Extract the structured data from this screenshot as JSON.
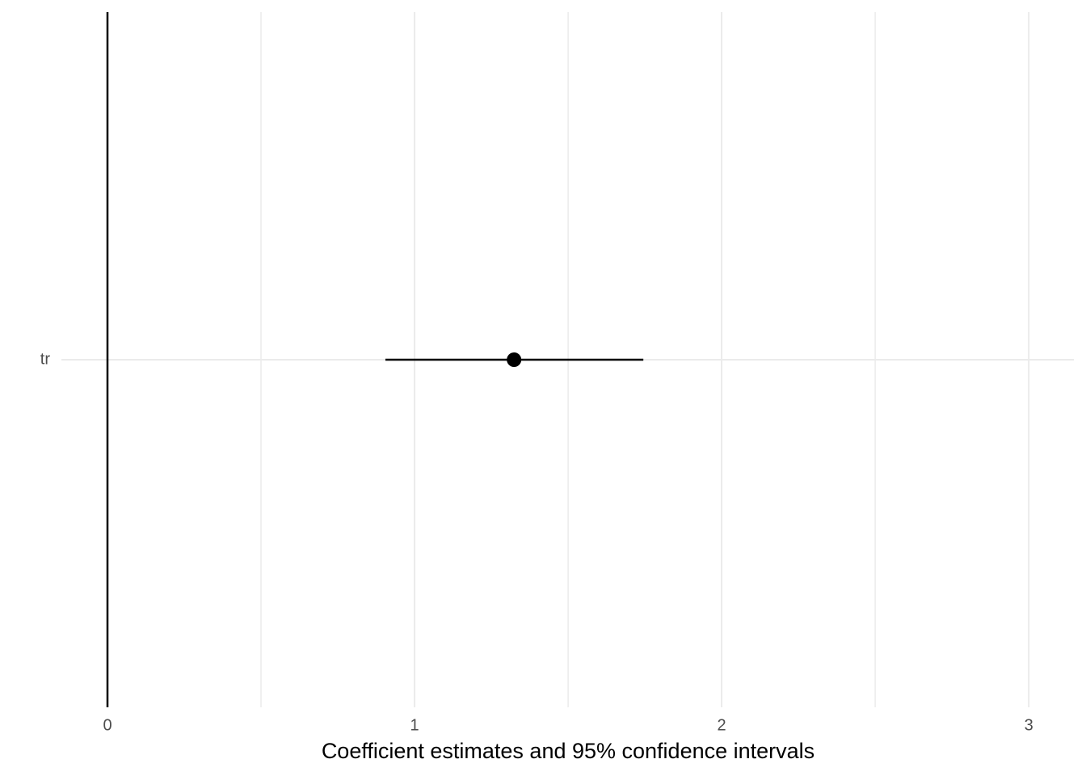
{
  "chart_data": {
    "type": "coefficient",
    "x_label": "Coefficient estimates and 95% confidence intervals",
    "categories": [
      "tr"
    ],
    "estimates": [
      1.324
    ],
    "ci_low": [
      0.905
    ],
    "ci_high": [
      1.745
    ],
    "xlim": [
      -0.15,
      3.147
    ],
    "xticks": [
      0,
      1,
      2,
      3
    ],
    "minor_xticks": [
      0.5,
      1.5,
      2.5
    ],
    "reference_line": 0,
    "grid": true,
    "color": "#000000"
  }
}
